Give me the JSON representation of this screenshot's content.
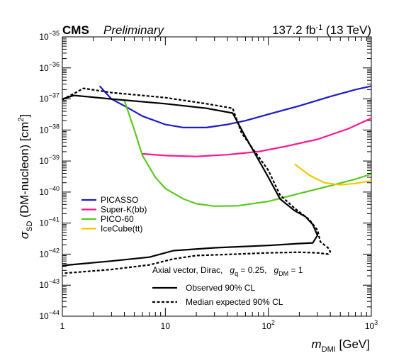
{
  "header": {
    "experiment": "CMS",
    "status": "Preliminary",
    "lumi_prefix": "137.2 fb",
    "lumi_exp": "-1",
    "energy": " (13 TeV)"
  },
  "axes": {
    "ylabel_prefix": "σ",
    "ylabel_sub": "SD",
    "ylabel_main": " (DM-nucleon) [cm",
    "ylabel_sup": "2",
    "ylabel_end": "]",
    "xlabel_main": "m",
    "xlabel_sub": "DMI",
    "xlabel_unit": " [GeV]"
  },
  "model": {
    "text": "Axial vector, Dirac,",
    "gq_label": "g",
    "gq_sub": "q",
    "gq_value": " = 0.25,",
    "gdm_label": "g",
    "gdm_sub": "DM",
    "gdm_value": " = 1"
  },
  "chart_data": {
    "type": "line",
    "xscale": "log",
    "yscale": "log",
    "xlim": [
      1,
      1000
    ],
    "ylim": [
      1e-44,
      1e-35
    ],
    "x_ticks": [
      {
        "v": 1,
        "label": "1"
      },
      {
        "v": 10,
        "label": "10"
      },
      {
        "v": 100,
        "label": "10",
        "sup": "2"
      },
      {
        "v": 1000,
        "label": "10",
        "sup": "3"
      }
    ],
    "y_ticks": [
      {
        "v": -44,
        "label": "10",
        "sup": "−44"
      },
      {
        "v": -43,
        "label": "10",
        "sup": "−43"
      },
      {
        "v": -42,
        "label": "10",
        "sup": "−42"
      },
      {
        "v": -41,
        "label": "10",
        "sup": "−41"
      },
      {
        "v": -40,
        "label": "10",
        "sup": "−40"
      },
      {
        "v": -39,
        "label": "10",
        "sup": "−39"
      },
      {
        "v": -38,
        "label": "10",
        "sup": "−38"
      },
      {
        "v": -37,
        "label": "10",
        "sup": "−37"
      },
      {
        "v": -36,
        "label": "10",
        "sup": "−36"
      },
      {
        "v": -35,
        "label": "10",
        "sup": "−35"
      }
    ],
    "series": [
      {
        "name": "PICASSO",
        "color": "#1c1cc8",
        "style": "solid",
        "points": [
          [
            2.3,
            2.6e-37
          ],
          [
            3,
            1e-37
          ],
          [
            4,
            6e-38
          ],
          [
            6,
            2.8e-38
          ],
          [
            10,
            1.5e-38
          ],
          [
            15,
            1.2e-38
          ],
          [
            25,
            1.2e-38
          ],
          [
            40,
            1.5e-38
          ],
          [
            60,
            2e-38
          ],
          [
            100,
            3.2e-38
          ],
          [
            200,
            6e-38
          ],
          [
            400,
            1.2e-37
          ],
          [
            700,
            2e-37
          ],
          [
            1000,
            2.6e-37
          ]
        ]
      },
      {
        "name": "Super-K(bb)",
        "color": "#ff1493",
        "style": "solid",
        "points": [
          [
            6,
            1.7e-39
          ],
          [
            10,
            1.5e-39
          ],
          [
            20,
            1.4e-39
          ],
          [
            40,
            1.6e-39
          ],
          [
            80,
            2e-39
          ],
          [
            150,
            3e-39
          ],
          [
            300,
            5e-39
          ],
          [
            600,
            1.1e-38
          ],
          [
            1000,
            2.4e-38
          ]
        ]
      },
      {
        "name": "PICO-60",
        "color": "#5ac81e",
        "style": "solid",
        "points": [
          [
            4,
            9e-38
          ],
          [
            5,
            1e-38
          ],
          [
            6,
            1.5e-39
          ],
          [
            8,
            3e-40
          ],
          [
            10,
            1.3e-40
          ],
          [
            15,
            6e-41
          ],
          [
            20,
            4.2e-41
          ],
          [
            30,
            3.5e-41
          ],
          [
            50,
            3.6e-41
          ],
          [
            100,
            5e-41
          ],
          [
            200,
            9e-41
          ],
          [
            400,
            1.6e-40
          ],
          [
            700,
            2.6e-40
          ],
          [
            1000,
            3.8e-40
          ]
        ]
      },
      {
        "name": "IceCube(tt)",
        "color": "#f0c800",
        "style": "solid",
        "points": [
          [
            180,
            8e-40
          ],
          [
            250,
            3.5e-40
          ],
          [
            350,
            2e-40
          ],
          [
            500,
            1.7e-40
          ],
          [
            700,
            1.9e-40
          ],
          [
            1000,
            2.3e-40
          ]
        ]
      },
      {
        "name": "Observed 90% CL",
        "color": "#000000",
        "style": "solid",
        "points": [
          [
            1,
            1e-37
          ],
          [
            1.3,
            1.3e-37
          ],
          [
            3,
            1e-37
          ],
          [
            10,
            7e-38
          ],
          [
            25,
            5e-38
          ],
          [
            45,
            3.5e-38
          ],
          [
            60,
            6e-39
          ],
          [
            100,
            3e-40
          ],
          [
            130,
            6e-41
          ],
          [
            180,
            2.5e-41
          ],
          [
            230,
            1.6e-41
          ],
          [
            270,
            9e-42
          ],
          [
            300,
            4e-42
          ],
          [
            270,
            2.3e-42
          ],
          [
            200,
            2.2e-42
          ],
          [
            100,
            1.9e-42
          ],
          [
            30,
            1.6e-42
          ],
          [
            12,
            1.3e-42
          ],
          [
            7,
            8e-43
          ],
          [
            3,
            6e-43
          ],
          [
            1,
            4.3e-43
          ]
        ]
      },
      {
        "name": "Median expected 90% CL",
        "color": "#000000",
        "style": "dashed",
        "points": [
          [
            1,
            9.5e-38
          ],
          [
            1.3,
            1.5e-37
          ],
          [
            1.6,
            2.2e-37
          ],
          [
            3,
            1.6e-37
          ],
          [
            10,
            1.1e-37
          ],
          [
            25,
            7e-38
          ],
          [
            45,
            5e-38
          ],
          [
            55,
            8e-39
          ],
          [
            100,
            5e-40
          ],
          [
            130,
            8e-41
          ],
          [
            180,
            3e-41
          ],
          [
            250,
            1.3e-41
          ],
          [
            300,
            6e-42
          ],
          [
            320,
            2.5e-42
          ],
          [
            380,
            1.6e-42
          ],
          [
            400,
            1.2e-42
          ],
          [
            380,
            1e-42
          ],
          [
            300,
            1.1e-42
          ],
          [
            200,
            1.15e-42
          ],
          [
            100,
            1.1e-42
          ],
          [
            50,
            1e-42
          ],
          [
            20,
            9e-43
          ],
          [
            12,
            7e-43
          ],
          [
            7,
            4.5e-43
          ],
          [
            3,
            3.2e-43
          ],
          [
            1,
            2.4e-43
          ]
        ]
      }
    ],
    "legend_top": {
      "placement": "left",
      "entries": [
        "PICASSO",
        "Super-K(bb)",
        "PICO-60",
        "IceCube(tt)"
      ]
    },
    "legend_bottom": {
      "placement": "bottom",
      "entries": [
        "Observed 90% CL",
        "Median expected 90% CL"
      ]
    }
  }
}
